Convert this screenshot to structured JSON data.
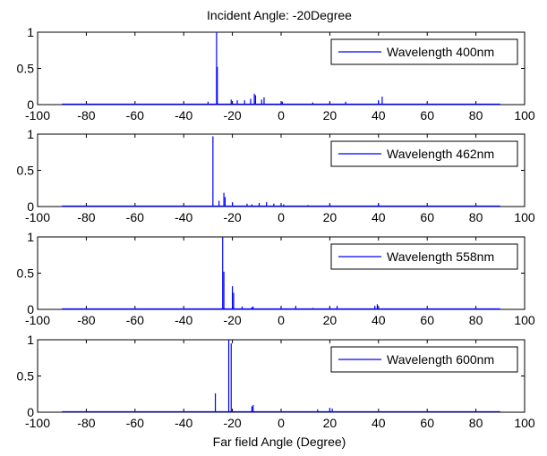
{
  "chart_data": {
    "title": "Incident Angle:  -20Degree",
    "xlabel": "Far field Angle (Degree)",
    "panels": [
      {
        "type": "line",
        "legend": "Wavelength 400nm",
        "xlim": [
          -100,
          100
        ],
        "ylim": [
          0,
          1
        ],
        "xticks": [
          "-100",
          "-80",
          "-60",
          "-40",
          "-20",
          "0",
          "20",
          "40",
          "60",
          "80",
          "100"
        ],
        "yticks": [
          "0",
          "0.5",
          "1"
        ],
        "color": "#0000ff",
        "x_range": [
          -90,
          90
        ],
        "peaks": [
          {
            "x": -26.5,
            "y": 1.0
          },
          {
            "x": -26.2,
            "y": 0.52
          },
          {
            "x": -30.0,
            "y": 0.04
          },
          {
            "x": -20.5,
            "y": 0.07
          },
          {
            "x": -18.0,
            "y": 0.06
          },
          {
            "x": -15.0,
            "y": 0.06
          },
          {
            "x": -12.5,
            "y": 0.08
          },
          {
            "x": -11.0,
            "y": 0.15
          },
          {
            "x": -10.5,
            "y": 0.13
          },
          {
            "x": -8.0,
            "y": 0.07
          },
          {
            "x": -7.0,
            "y": 0.1
          },
          {
            "x": 0.5,
            "y": 0.04
          },
          {
            "x": 13.0,
            "y": 0.03
          },
          {
            "x": 20.0,
            "y": 0.03
          },
          {
            "x": 26.5,
            "y": 0.04
          },
          {
            "x": 40.0,
            "y": 0.06
          },
          {
            "x": 41.5,
            "y": 0.11
          }
        ]
      },
      {
        "type": "line",
        "legend": "Wavelength 462nm",
        "xlim": [
          -100,
          100
        ],
        "ylim": [
          0,
          1
        ],
        "xticks": [
          "-100",
          "-80",
          "-60",
          "-40",
          "-20",
          "0",
          "20",
          "40",
          "60",
          "80",
          "100"
        ],
        "yticks": [
          "0",
          "0.5",
          "1"
        ],
        "color": "#0000ff",
        "x_range": [
          -90,
          90
        ],
        "peaks": [
          {
            "x": -28.0,
            "y": 0.97
          },
          {
            "x": -25.5,
            "y": 0.08
          },
          {
            "x": -23.5,
            "y": 0.19
          },
          {
            "x": -23.0,
            "y": 0.13
          },
          {
            "x": -20.0,
            "y": 0.06
          },
          {
            "x": -14.0,
            "y": 0.04
          },
          {
            "x": -12.0,
            "y": 0.03
          },
          {
            "x": -9.0,
            "y": 0.05
          },
          {
            "x": -6.0,
            "y": 0.06
          },
          {
            "x": -3.0,
            "y": 0.04
          },
          {
            "x": 1.0,
            "y": 0.03
          },
          {
            "x": 11.0,
            "y": 0.02
          },
          {
            "x": 20.0,
            "y": 0.03
          },
          {
            "x": 40.0,
            "y": 0.04
          }
        ]
      },
      {
        "type": "line",
        "legend": "Wavelength 558nm",
        "xlim": [
          -100,
          100
        ],
        "ylim": [
          0,
          1
        ],
        "xticks": [
          "-100",
          "-80",
          "-60",
          "-40",
          "-20",
          "0",
          "20",
          "40",
          "60",
          "80",
          "100"
        ],
        "yticks": [
          "0",
          "0.5",
          "1"
        ],
        "color": "#0000ff",
        "x_range": [
          -90,
          90
        ],
        "peaks": [
          {
            "x": -24.0,
            "y": 1.0
          },
          {
            "x": -23.5,
            "y": 0.52
          },
          {
            "x": -20.0,
            "y": 0.32
          },
          {
            "x": -19.5,
            "y": 0.23
          },
          {
            "x": -16.0,
            "y": 0.04
          },
          {
            "x": -12.0,
            "y": 0.03
          },
          {
            "x": -11.5,
            "y": 0.04
          },
          {
            "x": 0.0,
            "y": 0.04
          },
          {
            "x": 6.0,
            "y": 0.05
          },
          {
            "x": 13.0,
            "y": 0.02
          },
          {
            "x": 20.0,
            "y": 0.04
          },
          {
            "x": 23.0,
            "y": 0.05
          },
          {
            "x": 38.5,
            "y": 0.05
          },
          {
            "x": 39.5,
            "y": 0.07
          }
        ]
      },
      {
        "type": "line",
        "legend": "Wavelength 600nm",
        "xlim": [
          -100,
          100
        ],
        "ylim": [
          0,
          1
        ],
        "xticks": [
          "-100",
          "-80",
          "-60",
          "-40",
          "-20",
          "0",
          "20",
          "40",
          "60",
          "80",
          "100"
        ],
        "yticks": [
          "0",
          "0.5",
          "1"
        ],
        "color": "#0000ff",
        "x_range": [
          -90,
          90
        ],
        "peaks": [
          {
            "x": -27.0,
            "y": 0.26
          },
          {
            "x": -21.5,
            "y": 1.0
          },
          {
            "x": -20.5,
            "y": 0.95
          },
          {
            "x": -12.0,
            "y": 0.08
          },
          {
            "x": -11.5,
            "y": 0.1
          },
          {
            "x": 15.0,
            "y": 0.04
          },
          {
            "x": 20.0,
            "y": 0.06
          },
          {
            "x": 21.0,
            "y": 0.05
          }
        ]
      }
    ]
  }
}
